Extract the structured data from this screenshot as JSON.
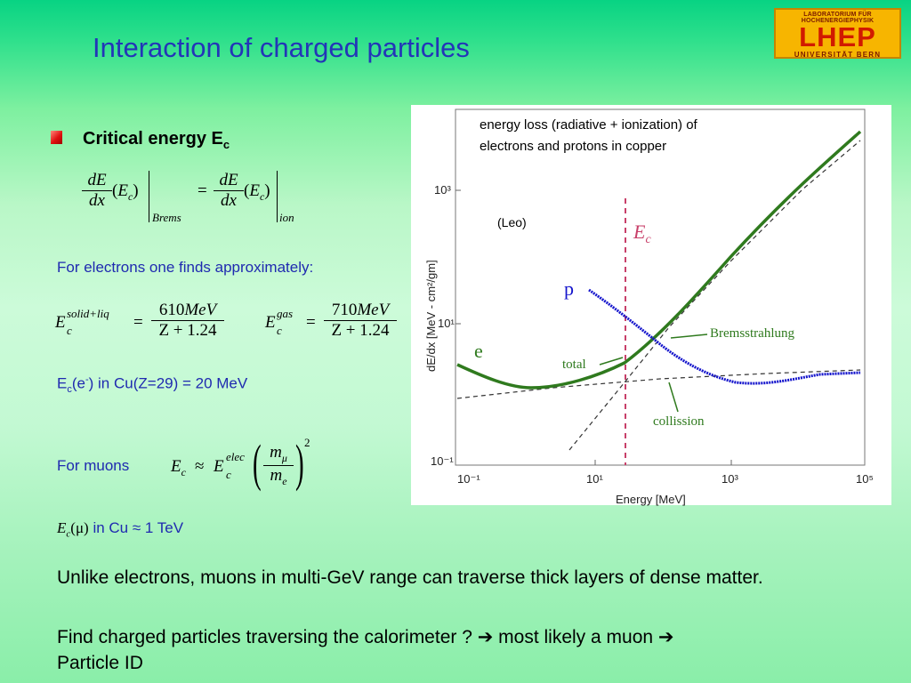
{
  "slide_title": "Interaction of charged particles",
  "logo": {
    "line1": "LABORATORIUM FÜR HOCHENERGIEPHYSIK",
    "line2": "LHEP",
    "line3": "UNIVERSITÄT BERN"
  },
  "bullet": {
    "label": "Critical energy E",
    "sub": "c"
  },
  "eq1": {
    "dE": "dE",
    "dx": "dx",
    "Ec": "E",
    "c": "c",
    "brems": "Brems",
    "ion": "ion"
  },
  "text_electrons": "For electrons one finds approximately:",
  "eq2": {
    "solid_sup": "solid+liq",
    "gas_sup": "gas",
    "num1": "610",
    "num2": "710",
    "unit": "MeV",
    "den": "Z + 1.24"
  },
  "ec_cu_line": "in Cu(Z=29) =  20 MeV",
  "text_muons": "For muons",
  "eq3": {
    "elec": "elec",
    "m_mu": "m",
    "mu": "μ",
    "m_e": "m",
    "e": "e",
    "exp": "2"
  },
  "muon_cu": {
    "mu": "(μ)",
    "rest": "in Cu  ≈  1 TeV"
  },
  "paragraph1": "Unlike electrons, muons in multi-GeV range can traverse thick layers of dense matter.",
  "paragraph2_a": "Find charged particles traversing the calorimeter ? ",
  "paragraph2_b": " most likely a muon ",
  "paragraph2_c": "Particle ID",
  "chart": {
    "caption1": "energy loss (radiative + ionization) of",
    "caption2": "electrons and protons in copper",
    "leo": "(Leo)",
    "ec_label": "E",
    "ec_sub": "c",
    "p": "p",
    "e": "e",
    "brems": "Bremsstrahlung",
    "total": "total",
    "collision": "collission",
    "xlabel": "Energy  [MeV]",
    "ylabel": "dE/dx [MeV - cm²/gm]",
    "xticks": [
      "10⁻¹",
      "10¹",
      "10³",
      "10⁵"
    ],
    "yticks": [
      "10³",
      "10¹",
      "10⁻¹"
    ],
    "colors": {
      "green": "#2f7a1e",
      "blue": "#1414cc",
      "red": "#c8406a"
    }
  }
}
